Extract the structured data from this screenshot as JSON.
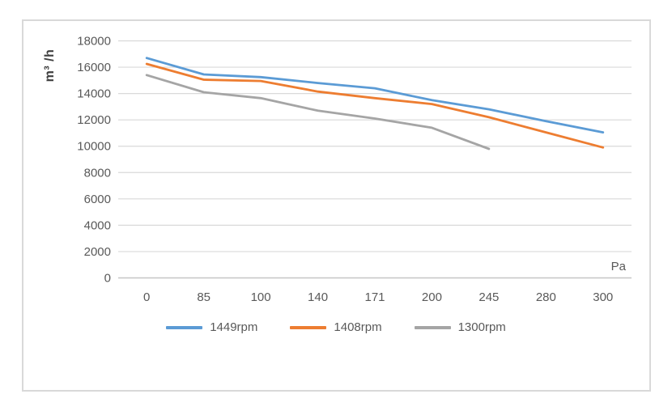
{
  "chart_data": {
    "type": "line",
    "title": "",
    "ylabel": "m³ /h",
    "xlabel": "Pa",
    "categories": [
      "0",
      "85",
      "100",
      "140",
      "171",
      "200",
      "245",
      "280",
      "300"
    ],
    "y_ticks": [
      0,
      2000,
      4000,
      6000,
      8000,
      10000,
      12000,
      14000,
      16000,
      18000
    ],
    "ylim": [
      0,
      18000
    ],
    "grid": "horizontal",
    "legend_position": "bottom",
    "series": [
      {
        "name": "1449rpm",
        "color": "#5B9BD5",
        "values": [
          16700,
          15450,
          15250,
          14800,
          14400,
          13500,
          12800,
          11900,
          11050
        ]
      },
      {
        "name": "1408rpm",
        "color": "#ED7D31",
        "values": [
          16250,
          15050,
          14950,
          14150,
          13650,
          13200,
          12200,
          11050,
          9900
        ]
      },
      {
        "name": "1300rpm",
        "color": "#A5A5A5",
        "values": [
          15400,
          14100,
          13650,
          12700,
          12100,
          11400,
          9800,
          null,
          null
        ]
      }
    ],
    "colors": {
      "grid": "#D9D9D9",
      "axis": "#C6C6C6",
      "tick_text": "#595959",
      "frame_border": "#D9D9D9"
    }
  }
}
